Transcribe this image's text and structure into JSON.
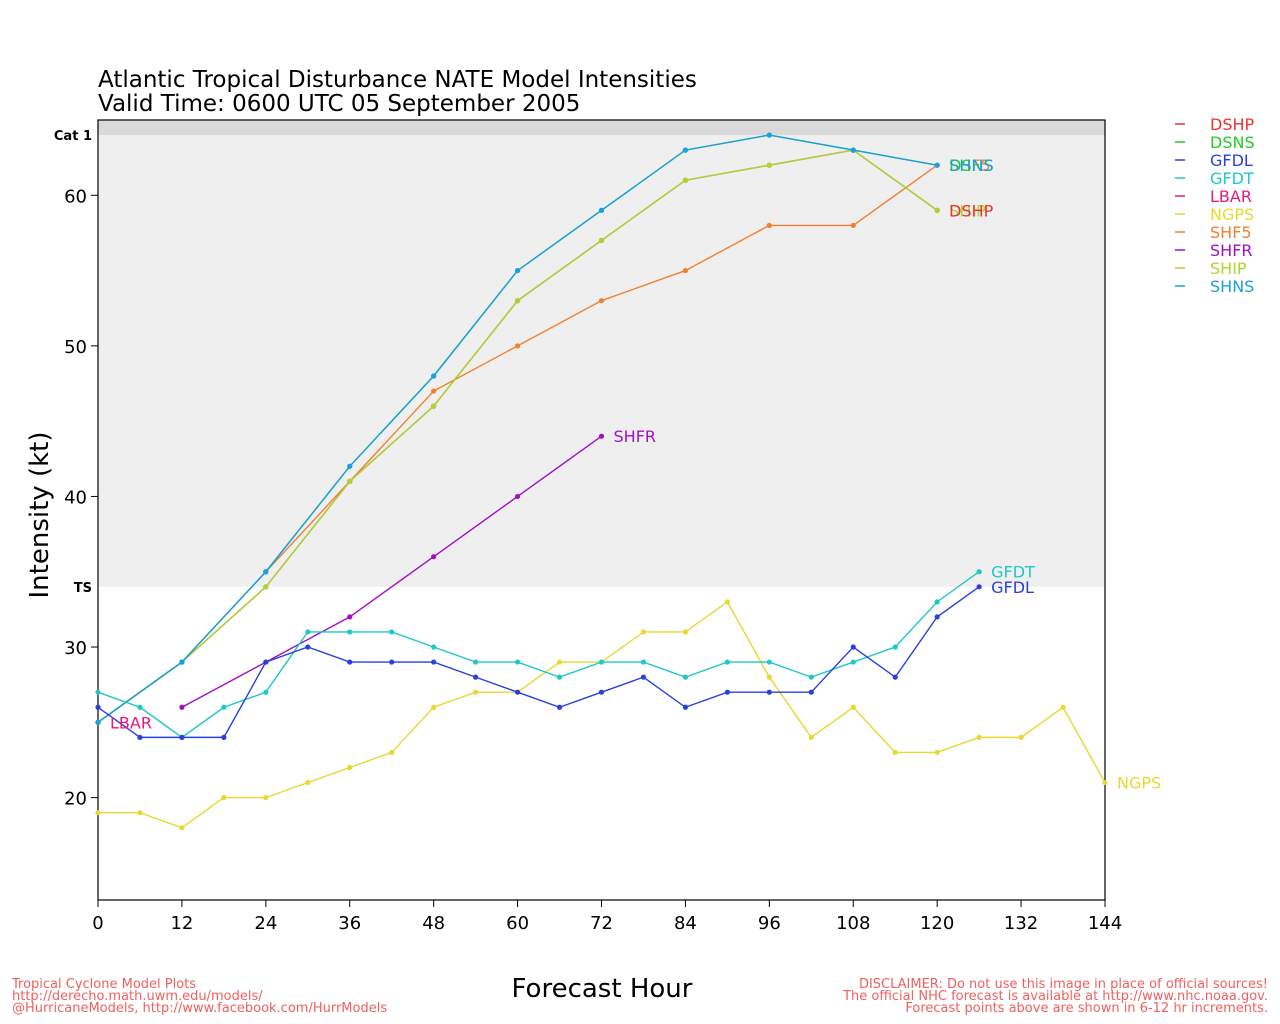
{
  "chart_data": {
    "type": "line",
    "title": "Atlantic Tropical Disturbance NATE Model Intensities",
    "subtitle": "Valid Time: 0600 UTC 05 September 2005",
    "xlabel": "Forecast Hour",
    "ylabel": "Intensity (kt)",
    "xlim": [
      0,
      144
    ],
    "ylim": [
      13.2,
      65
    ],
    "xticks": [
      0,
      12,
      24,
      36,
      48,
      60,
      72,
      84,
      96,
      108,
      120,
      132,
      144
    ],
    "yticks": [
      20,
      30,
      40,
      50,
      60
    ],
    "bands": [
      {
        "label": "TS",
        "from": 34,
        "to": 64,
        "color": "#efefef"
      },
      {
        "label": "Cat 1",
        "from": 64,
        "to": 65,
        "color": "#dadada"
      }
    ],
    "legend_position": "right",
    "legend": [
      {
        "name": "DSHP",
        "color": "#ee3030"
      },
      {
        "name": "DSNS",
        "color": "#22cc22"
      },
      {
        "name": "GFDL",
        "color": "#2a3fe0"
      },
      {
        "name": "GFDT",
        "color": "#1fc8c8"
      },
      {
        "name": "LBAR",
        "color": "#e8187a"
      },
      {
        "name": "NGPS",
        "color": "#e8d830"
      },
      {
        "name": "SHF5",
        "color": "#f08030"
      },
      {
        "name": "SHFR",
        "color": "#a010c8"
      },
      {
        "name": "SHIP",
        "color": "#a8d830"
      },
      {
        "name": "SHNS",
        "color": "#1aa0e0"
      }
    ],
    "series": [
      {
        "name": "NGPS",
        "color": "#e8d830",
        "x": [
          0,
          6,
          12,
          18,
          24,
          30,
          36,
          42,
          48,
          54,
          60,
          66,
          72,
          78,
          84,
          90,
          96,
          102,
          108,
          114,
          120,
          126,
          132,
          138,
          144
        ],
        "y": [
          19,
          19,
          18,
          20,
          20,
          21,
          22,
          23,
          26,
          27,
          27,
          29,
          29,
          31,
          31,
          33,
          28,
          24,
          26,
          23,
          23,
          24,
          24,
          26,
          21
        ]
      },
      {
        "name": "LBAR",
        "color": "#e8187a",
        "x": [
          0
        ],
        "y": [
          25
        ]
      },
      {
        "name": "SHF5",
        "color": "#f08030",
        "x": [
          0,
          12,
          24,
          36,
          48,
          60,
          72,
          84,
          96,
          108,
          120
        ],
        "y": [
          25,
          29,
          35,
          41,
          47,
          50,
          53,
          55,
          58,
          58,
          62
        ]
      },
      {
        "name": "DSHP",
        "color": "#ee3030",
        "x": [
          0,
          12,
          24,
          36,
          48,
          60,
          72,
          84,
          96,
          108,
          120
        ],
        "y": [
          25,
          29,
          34,
          41,
          46,
          53,
          57,
          61,
          62,
          63,
          59
        ]
      },
      {
        "name": "SHIP",
        "color": "#a8d830",
        "x": [
          0,
          12,
          24,
          36,
          48,
          60,
          72,
          84,
          96,
          108,
          120
        ],
        "y": [
          25,
          29,
          34,
          41,
          46,
          53,
          57,
          61,
          62,
          63,
          59
        ]
      },
      {
        "name": "DSNS",
        "color": "#22cc22",
        "x": [
          0,
          12,
          24,
          36,
          48,
          60,
          72,
          84,
          96,
          108,
          120
        ],
        "y": [
          25,
          29,
          35,
          42,
          48,
          55,
          59,
          63,
          64,
          63,
          62
        ]
      },
      {
        "name": "SHNS",
        "color": "#1aa0e0",
        "x": [
          0,
          12,
          24,
          36,
          48,
          60,
          72,
          84,
          96,
          108,
          120
        ],
        "y": [
          25,
          29,
          35,
          42,
          48,
          55,
          59,
          63,
          64,
          63,
          62
        ]
      },
      {
        "name": "SHFR",
        "color": "#a010c8",
        "x": [
          12,
          24,
          36,
          48,
          60,
          72
        ],
        "y": [
          26,
          29,
          32,
          36,
          40,
          44
        ]
      },
      {
        "name": "GFDT",
        "color": "#1fc8c8",
        "x": [
          0,
          6,
          12,
          18,
          24,
          30,
          36,
          42,
          48,
          54,
          60,
          66,
          72,
          78,
          84,
          90,
          96,
          102,
          108,
          114,
          120,
          126
        ],
        "y": [
          27,
          26,
          24,
          26,
          27,
          31,
          31,
          31,
          30,
          29,
          29,
          28,
          29,
          29,
          28,
          29,
          29,
          28,
          29,
          30,
          33,
          35
        ]
      },
      {
        "name": "GFDL",
        "color": "#2a3fe0",
        "x": [
          0,
          6,
          12,
          18,
          24,
          30,
          36,
          42,
          48,
          54,
          60,
          66,
          72,
          78,
          84,
          90,
          96,
          102,
          108,
          114,
          120,
          126
        ],
        "y": [
          26,
          24,
          24,
          24,
          29,
          30,
          29,
          29,
          29,
          28,
          27,
          26,
          27,
          28,
          26,
          27,
          27,
          27,
          30,
          28,
          32,
          34
        ]
      }
    ],
    "end_labels": [
      {
        "text": "LBAR",
        "series": "LBAR"
      },
      {
        "text": "SHFR",
        "series": "SHFR"
      },
      {
        "text": "NGPS",
        "series": "NGPS"
      },
      {
        "text": "GFDT",
        "series": "GFDT"
      },
      {
        "text": "GFDL",
        "series": "GFDL"
      },
      {
        "text": "SHF5",
        "series": "SHF5"
      },
      {
        "text": "DSNS",
        "series": "DSNS"
      },
      {
        "text": "SHNS",
        "series": "SHNS"
      },
      {
        "text": "SHIP",
        "series": "SHIP"
      },
      {
        "text": "DSHP",
        "series": "DSHP"
      }
    ]
  },
  "footer": {
    "left": [
      "Tropical Cyclone Model Plots",
      "http://derecho.math.uwm.edu/models/",
      "@HurricaneModels, http://www.facebook.com/HurrModels"
    ],
    "right": [
      "DISCLAIMER: Do not use this image in place of official sources!",
      "The official NHC forecast is available at http://www.nhc.noaa.gov.",
      "Forecast points above are shown in 6-12 hr increments."
    ],
    "color": "#f06060"
  }
}
